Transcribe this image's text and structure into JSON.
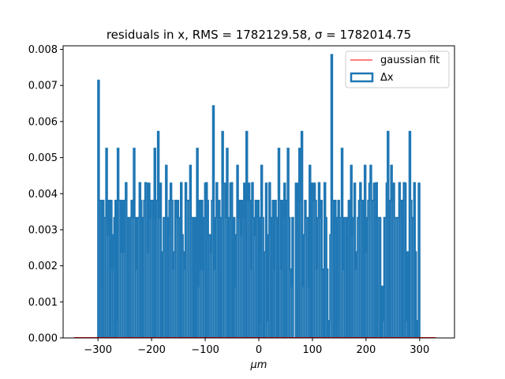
{
  "chart_data": {
    "type": "histogram",
    "title": "residuals in x, RMS = 1782129.58, σ = 1782014.75",
    "xlabel": "μm",
    "ylabel": "",
    "xlim": [
      -365,
      365
    ],
    "ylim": [
      0,
      0.0081
    ],
    "xticks": [
      -300,
      -200,
      -100,
      0,
      100,
      200,
      300
    ],
    "xtick_labels": [
      "−300",
      "−200",
      "−100",
      "0",
      "100",
      "200",
      "300"
    ],
    "yticks": [
      0.0,
      0.001,
      0.002,
      0.003,
      0.004,
      0.005,
      0.006,
      0.007,
      0.008
    ],
    "ytick_labels": [
      "0.000",
      "0.001",
      "0.002",
      "0.003",
      "0.004",
      "0.005",
      "0.006",
      "0.007",
      "0.008"
    ],
    "hist_range": [
      -300,
      300
    ],
    "hist_bin_count": 280,
    "histogram_tall_peaks": [
      {
        "x": -298,
        "y": 0.00714
      },
      {
        "x": -285,
        "y": 0.00525
      },
      {
        "x": -262,
        "y": 0.00525
      },
      {
        "x": -247,
        "y": 0.0043
      },
      {
        "x": -232,
        "y": 0.00525
      },
      {
        "x": -222,
        "y": 0.0043
      },
      {
        "x": -211,
        "y": 0.0043
      },
      {
        "x": -193,
        "y": 0.00525
      },
      {
        "x": -187,
        "y": 0.00572
      },
      {
        "x": -173,
        "y": 0.00478
      },
      {
        "x": -145,
        "y": 0.0043
      },
      {
        "x": -137,
        "y": 0.0043
      },
      {
        "x": -128,
        "y": 0.00478
      },
      {
        "x": -115,
        "y": 0.00525
      },
      {
        "x": -98,
        "y": 0.0043
      },
      {
        "x": -85,
        "y": 0.00643
      },
      {
        "x": -78,
        "y": 0.0043
      },
      {
        "x": -68,
        "y": 0.00572
      },
      {
        "x": -60,
        "y": 0.00525
      },
      {
        "x": -50,
        "y": 0.0043
      },
      {
        "x": -40,
        "y": 0.00478
      },
      {
        "x": -23,
        "y": 0.00572
      },
      {
        "x": -12,
        "y": 0.0043
      },
      {
        "x": 5,
        "y": 0.00478
      },
      {
        "x": 20,
        "y": 0.0043
      },
      {
        "x": 38,
        "y": 0.00525
      },
      {
        "x": 55,
        "y": 0.00525
      },
      {
        "x": 75,
        "y": 0.00525
      },
      {
        "x": 80,
        "y": 0.00572
      },
      {
        "x": 95,
        "y": 0.00478
      },
      {
        "x": 112,
        "y": 0.0043
      },
      {
        "x": 124,
        "y": 0.0043
      },
      {
        "x": 137,
        "y": 0.00785
      },
      {
        "x": 155,
        "y": 0.00525
      },
      {
        "x": 172,
        "y": 0.00478
      },
      {
        "x": 190,
        "y": 0.0043
      },
      {
        "x": 198,
        "y": 0.00478
      },
      {
        "x": 208,
        "y": 0.00478
      },
      {
        "x": 220,
        "y": 0.0043
      },
      {
        "x": 241,
        "y": 0.00572
      },
      {
        "x": 248,
        "y": 0.00478
      },
      {
        "x": 262,
        "y": 0.0043
      },
      {
        "x": 270,
        "y": 0.0043
      },
      {
        "x": 281,
        "y": 0.00572
      },
      {
        "x": 290,
        "y": 0.0043
      }
    ],
    "histogram_typical_level": 0.00357,
    "histogram_level_step": 0.000476,
    "gaussian_fit_level": 0.0,
    "colors": {
      "histogram": "#1f77b4",
      "gaussian_fit": "#ff0000",
      "axes": "#000000"
    },
    "legend": {
      "placement": "top-right",
      "entries": [
        {
          "label": "gaussian fit",
          "style": "line",
          "color": "#ff0000"
        },
        {
          "label": "Δx",
          "style": "step",
          "color": "#1f77b4"
        }
      ]
    },
    "grid": false
  }
}
